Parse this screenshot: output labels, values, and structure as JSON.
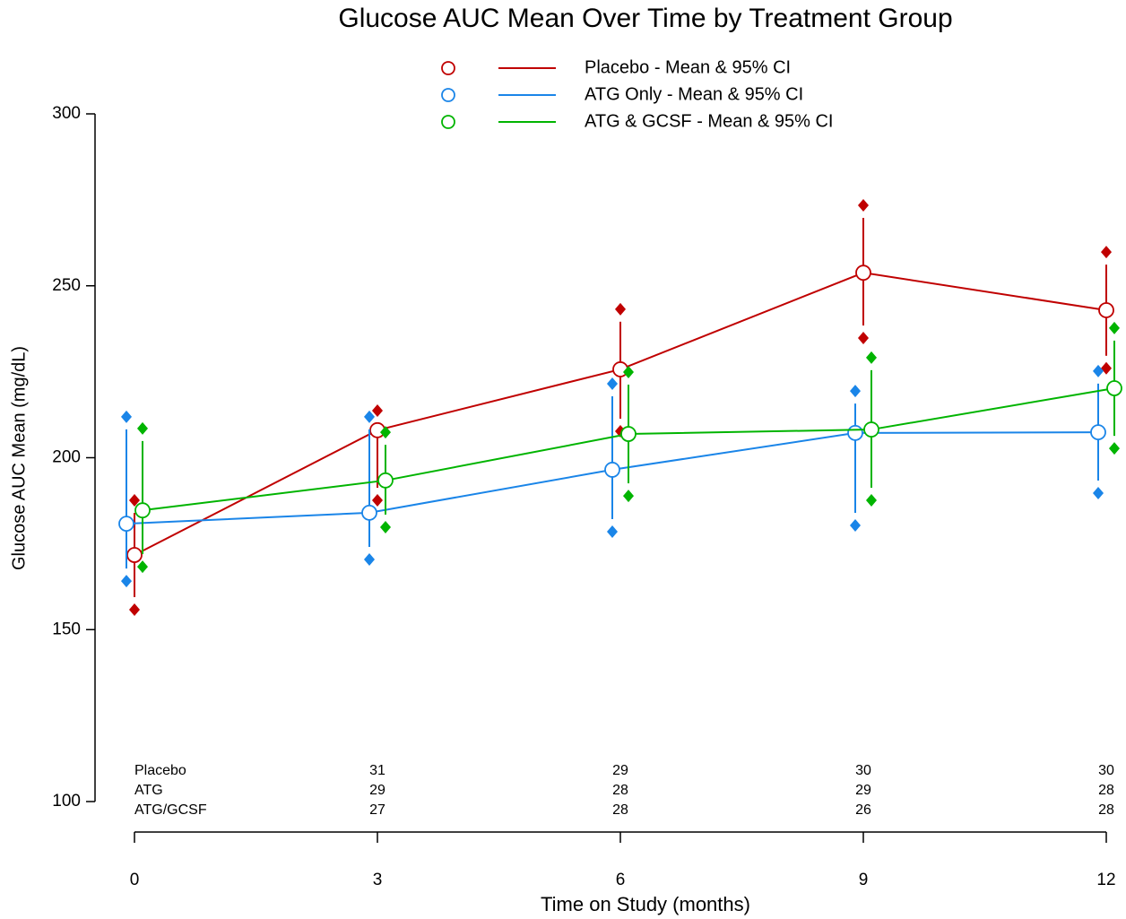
{
  "chart_data": {
    "type": "line-ci",
    "title": "Glucose AUC Mean Over Time by Treatment Group",
    "x_label": "Time on Study (months)",
    "y_label": "Glucose AUC Mean (mg/dL)",
    "x": [
      0,
      3,
      6,
      9,
      12
    ],
    "xlim": [
      0,
      12
    ],
    "xticks": [
      0,
      3,
      6,
      9,
      12
    ],
    "ylim": [
      100,
      300
    ],
    "yticks": [
      100,
      150,
      200,
      250,
      300
    ],
    "series": [
      {
        "name": "Placebo - Mean & 95% CI",
        "color": "#c00000",
        "values": [
          171.7,
          208.0,
          225.7,
          253.8,
          242.9
        ],
        "ci_low": [
          155.8,
          187.6,
          207.7,
          234.8,
          226.0
        ],
        "ci_high": [
          187.6,
          213.7,
          243.2,
          273.4,
          259.8
        ]
      },
      {
        "name": "ATG Only - Mean & 95% CI",
        "color": "#1a85e8",
        "values": [
          180.8,
          184.0,
          196.5,
          207.2,
          207.4
        ],
        "ci_low": [
          164.1,
          170.4,
          178.5,
          180.3,
          189.7
        ],
        "ci_high": [
          211.9,
          211.9,
          221.5,
          219.4,
          225.2
        ]
      },
      {
        "name": "ATG & GCSF - Mean & 95% CI",
        "color": "#00b400",
        "values": [
          184.7,
          193.4,
          206.9,
          208.2,
          220.2
        ],
        "ci_low": [
          168.3,
          179.8,
          188.9,
          187.6,
          202.7
        ],
        "ci_high": [
          208.5,
          207.4,
          224.9,
          229.1,
          237.7
        ]
      }
    ],
    "at_risk": {
      "x": [
        3,
        6,
        9,
        12
      ],
      "rows": [
        {
          "label": "Placebo",
          "counts": [
            31,
            29,
            30,
            30
          ]
        },
        {
          "label": "ATG",
          "counts": [
            29,
            28,
            29,
            28
          ]
        },
        {
          "label": "ATG/GCSF",
          "counts": [
            27,
            28,
            26,
            28
          ]
        }
      ]
    }
  }
}
